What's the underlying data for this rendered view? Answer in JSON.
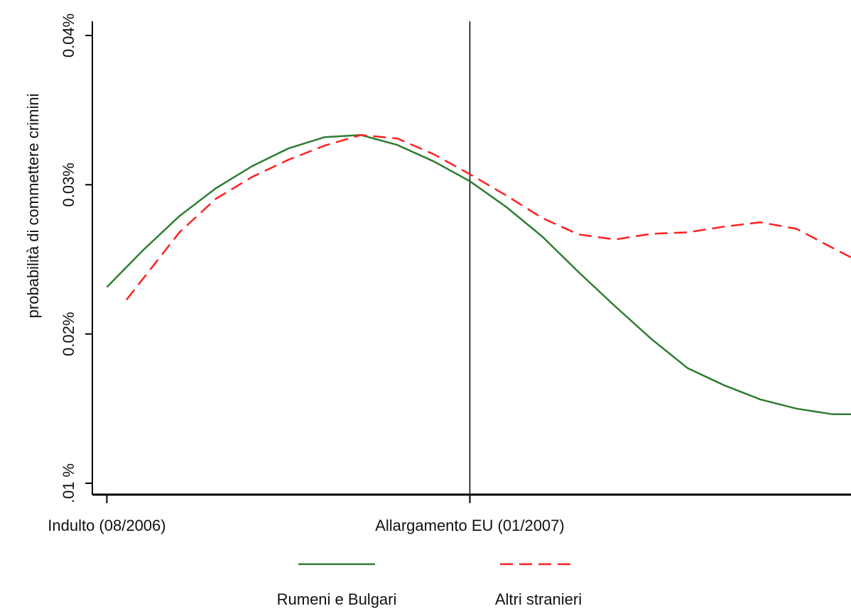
{
  "chart_data": {
    "type": "line",
    "y_label": "probabilità di commettere crimini",
    "xlim": [
      -0.2,
      10.25
    ],
    "xticks": [
      {
        "value": 0,
        "label": "Indulto (08/2006)"
      },
      {
        "value": 5,
        "label": "Allargamento EU (01/2007)"
      }
    ],
    "ylim": [
      0.00924,
      0.04095
    ],
    "yticks": [
      {
        "value": 0.01,
        "label": ".01 %"
      },
      {
        "value": 0.02,
        "label": "0.02%"
      },
      {
        "value": 0.03,
        "label": "0.03%"
      },
      {
        "value": 0.04,
        "label": "0.04%"
      }
    ],
    "legend": "bottom",
    "series": [
      {
        "name": "Rumeni e Bulgari",
        "color": "#2e7d32",
        "dash": "solid",
        "x": [
          0,
          0.5,
          1,
          1.5,
          2,
          2.5,
          3,
          3.5,
          4,
          4.5,
          5,
          5.5,
          6,
          6.5,
          7,
          7.5,
          8,
          8.5,
          9,
          9.5,
          10,
          10.25
        ],
        "values": [
          0.02314,
          0.02562,
          0.0279,
          0.02976,
          0.03124,
          0.03243,
          0.03319,
          0.03333,
          0.03267,
          0.03157,
          0.03024,
          0.02852,
          0.02652,
          0.02414,
          0.02186,
          0.01967,
          0.01771,
          0.01657,
          0.01562,
          0.015,
          0.01462,
          0.01462
        ]
      },
      {
        "name": "Altri stranieri",
        "color": "#ff2020",
        "dash": "dashed",
        "x": [
          0.27,
          0.5,
          1,
          1.5,
          2,
          2.5,
          3,
          3.5,
          4,
          4.5,
          5,
          5.5,
          6,
          6.5,
          7,
          7.5,
          8,
          8.5,
          9,
          9.5,
          10,
          10.25
        ],
        "values": [
          0.02229,
          0.02371,
          0.02681,
          0.02905,
          0.03052,
          0.03167,
          0.03262,
          0.03333,
          0.0331,
          0.03205,
          0.03071,
          0.02929,
          0.02776,
          0.02667,
          0.02633,
          0.02671,
          0.02681,
          0.02719,
          0.02748,
          0.02705,
          0.02576,
          0.02514
        ]
      }
    ]
  }
}
